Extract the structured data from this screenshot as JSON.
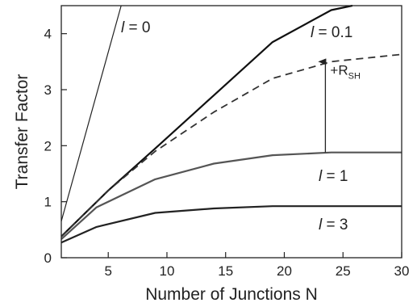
{
  "chart_data": {
    "type": "line",
    "title": "",
    "xlabel": "Number of Junctions  N",
    "ylabel": "Transfer Factor",
    "xlim": [
      1,
      30
    ],
    "ylim": [
      0,
      4.5
    ],
    "xticks": [
      5,
      10,
      15,
      20,
      25,
      30
    ],
    "yticks": [
      0,
      1,
      2,
      3,
      4
    ],
    "grid": false,
    "series": [
      {
        "name": "l = 0",
        "label_var": "l",
        "label_rest": " = 0",
        "color": "#222222",
        "width": 1.2,
        "dash": "",
        "x": [
          1,
          6.1
        ],
        "y": [
          0.65,
          4.5
        ]
      },
      {
        "name": "l = 0.1",
        "label_var": "l",
        "label_rest": " = 0.1",
        "color": "#111111",
        "width": 2.2,
        "dash": "",
        "x": [
          1,
          5,
          9,
          14,
          19,
          24,
          25.8
        ],
        "y": [
          0.38,
          1.2,
          1.95,
          2.9,
          3.85,
          4.42,
          4.5
        ]
      },
      {
        "name": "",
        "label_var": "",
        "label_rest": "",
        "color": "#333333",
        "width": 1.8,
        "dash": "9,6",
        "x": [
          1,
          5,
          9,
          14,
          19,
          24,
          30
        ],
        "y": [
          0.38,
          1.2,
          1.9,
          2.6,
          3.2,
          3.5,
          3.63
        ]
      },
      {
        "name": "l = 1",
        "label_var": "l",
        "label_rest": " = 1",
        "color": "#555555",
        "width": 2.2,
        "dash": "",
        "x": [
          1,
          4,
          9,
          14,
          19,
          24,
          30
        ],
        "y": [
          0.33,
          0.9,
          1.4,
          1.68,
          1.83,
          1.88,
          1.88
        ]
      },
      {
        "name": "l = 3",
        "label_var": "l",
        "label_rest": " = 3",
        "color": "#222222",
        "width": 2.2,
        "dash": "",
        "x": [
          1,
          4,
          9,
          14,
          19,
          24,
          30
        ],
        "y": [
          0.27,
          0.55,
          0.8,
          0.88,
          0.92,
          0.92,
          0.92
        ]
      }
    ],
    "annotation": {
      "text": "+R",
      "subscript": "SH",
      "arrow_x": 23.5,
      "arrow_from_y": 1.88,
      "arrow_to_y": 3.5
    }
  }
}
